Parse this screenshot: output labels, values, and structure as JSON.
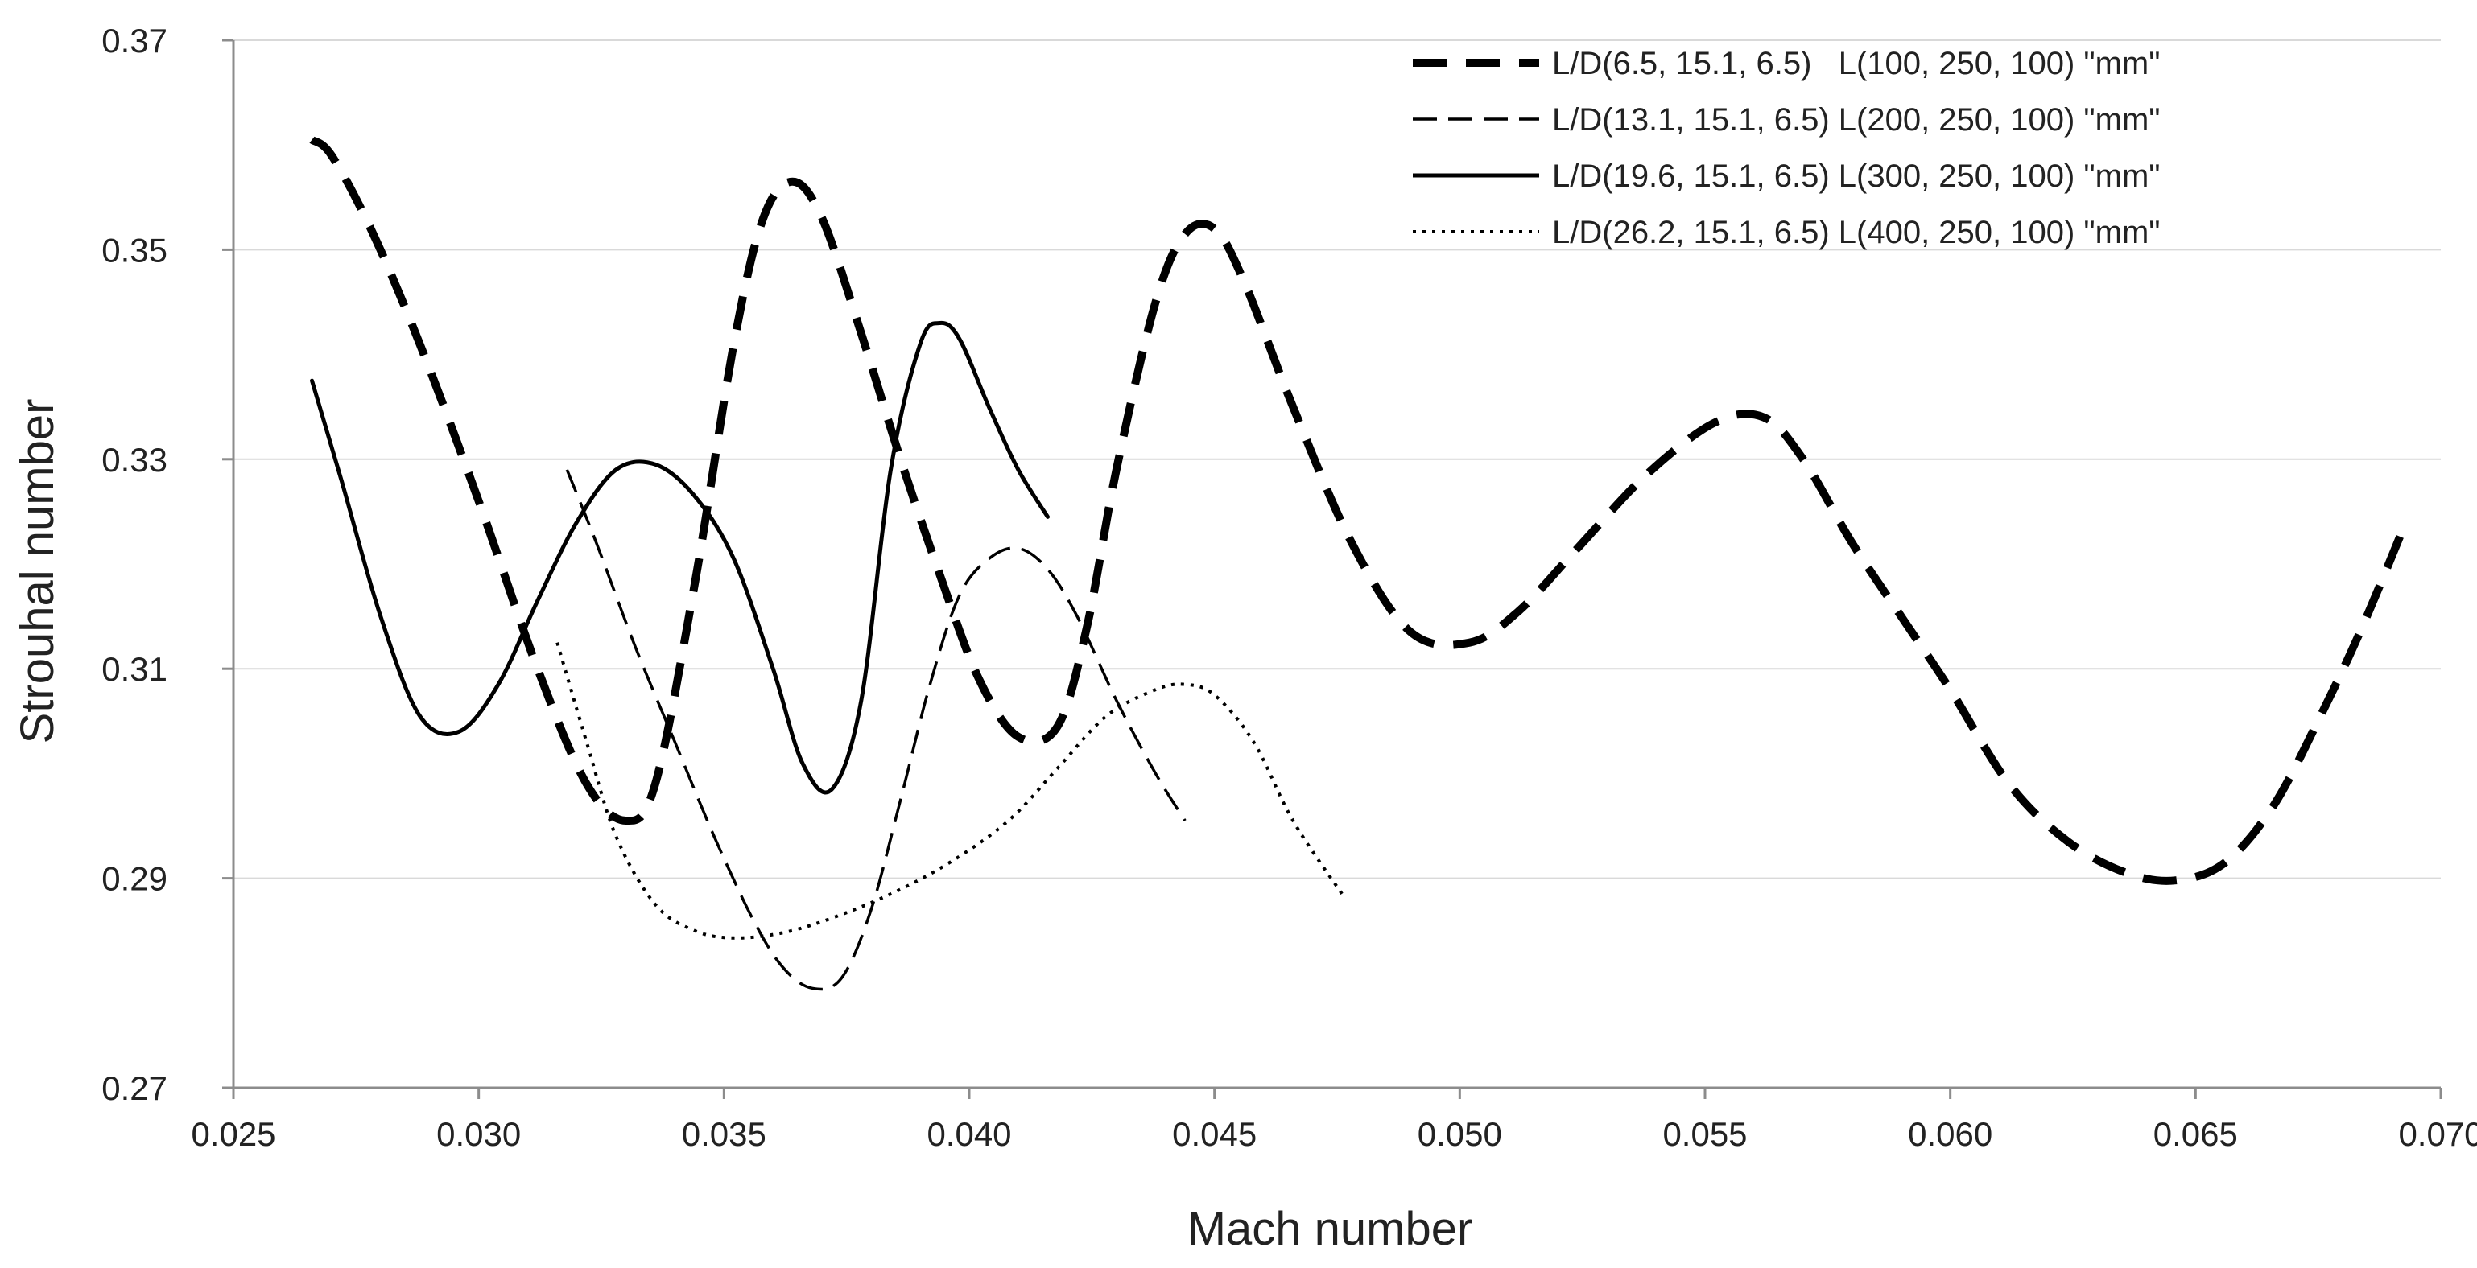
{
  "chart_data": {
    "type": "line",
    "title": "",
    "xlabel": "Mach number",
    "ylabel": "Strouhal number",
    "xlim": [
      0.025,
      0.07
    ],
    "ylim": [
      0.27,
      0.37
    ],
    "xticks": [
      0.025,
      0.03,
      0.035,
      0.04,
      0.045,
      0.05,
      0.055,
      0.06,
      0.065,
      0.07
    ],
    "xtick_labels": [
      "0.025",
      "0.030",
      "0.035",
      "0.040",
      "0.045",
      "0.050",
      "0.055",
      "0.060",
      "0.065",
      "0.070"
    ],
    "yticks": [
      0.27,
      0.29,
      0.31,
      0.33,
      0.35,
      0.37
    ],
    "ytick_labels": [
      "0.27",
      "0.29",
      "0.31",
      "0.33",
      "0.35",
      "0.37"
    ],
    "grid": "horizontal",
    "legend_position": "top-right",
    "series": [
      {
        "name": "L/D(6.5, 15.1, 6.5)   L(100, 250, 100) \"mm\"",
        "style": "dash-heavy",
        "color": "#000000",
        "x": [
          0.0266,
          0.027,
          0.0278,
          0.0288,
          0.03,
          0.0312,
          0.0322,
          0.033,
          0.0336,
          0.0344,
          0.0352,
          0.0358,
          0.0364,
          0.037,
          0.0378,
          0.0386,
          0.0394,
          0.0402,
          0.041,
          0.0418,
          0.0424,
          0.043,
          0.0438,
          0.0444,
          0.045,
          0.0456,
          0.0466,
          0.0478,
          0.049,
          0.0502,
          0.0512,
          0.0524,
          0.0538,
          0.0552,
          0.0562,
          0.057,
          0.058,
          0.059,
          0.06,
          0.0612,
          0.0624,
          0.0636,
          0.0646,
          0.0656,
          0.0666,
          0.0676,
          0.0684,
          0.0692
        ],
        "y": [
          0.3605,
          0.359,
          0.352,
          0.341,
          0.326,
          0.31,
          0.299,
          0.2955,
          0.299,
          0.318,
          0.341,
          0.353,
          0.3565,
          0.353,
          0.342,
          0.33,
          0.319,
          0.309,
          0.3035,
          0.3045,
          0.314,
          0.329,
          0.345,
          0.3515,
          0.352,
          0.347,
          0.335,
          0.322,
          0.3135,
          0.3125,
          0.3155,
          0.3215,
          0.3285,
          0.3335,
          0.334,
          0.33,
          0.322,
          0.315,
          0.308,
          0.299,
          0.2935,
          0.2905,
          0.2898,
          0.2915,
          0.297,
          0.306,
          0.314,
          0.323
        ]
      },
      {
        "name": "L/D(13.1, 15.1, 6.5) L(200, 250, 100) \"mm\"",
        "style": "dash-light",
        "color": "#000000",
        "x": [
          0.0318,
          0.0324,
          0.0332,
          0.034,
          0.0348,
          0.0356,
          0.0362,
          0.0368,
          0.0374,
          0.038,
          0.0386,
          0.0392,
          0.0398,
          0.0404,
          0.041,
          0.0416,
          0.0422,
          0.043,
          0.0438,
          0.0444
        ],
        "y": [
          0.329,
          0.322,
          0.312,
          0.303,
          0.294,
          0.286,
          0.2815,
          0.2795,
          0.2805,
          0.287,
          0.2975,
          0.3085,
          0.317,
          0.3205,
          0.3215,
          0.3195,
          0.315,
          0.307,
          0.3,
          0.2955
        ]
      },
      {
        "name": "L/D(19.6, 15.1, 6.5) L(300, 250, 100) \"mm\"",
        "style": "solid",
        "color": "#000000",
        "x": [
          0.0266,
          0.0272,
          0.028,
          0.0288,
          0.0296,
          0.0304,
          0.0312,
          0.032,
          0.0328,
          0.0336,
          0.0344,
          0.0352,
          0.036,
          0.0366,
          0.0372,
          0.0378,
          0.0384,
          0.039,
          0.0394,
          0.0398,
          0.0404,
          0.041,
          0.0416
        ],
        "y": [
          0.3375,
          0.328,
          0.315,
          0.3055,
          0.304,
          0.3085,
          0.3165,
          0.324,
          0.329,
          0.3295,
          0.3265,
          0.3205,
          0.31,
          0.301,
          0.2985,
          0.307,
          0.329,
          0.341,
          0.343,
          0.3415,
          0.335,
          0.329,
          0.3245
        ]
      },
      {
        "name": "L/D(26.2, 15.1, 6.5) L(400, 250, 100) \"mm\"",
        "style": "dotted",
        "color": "#000000",
        "x": [
          0.0316,
          0.0322,
          0.0328,
          0.0336,
          0.0344,
          0.0352,
          0.0362,
          0.0372,
          0.0384,
          0.0396,
          0.0408,
          0.0418,
          0.0428,
          0.0438,
          0.0444,
          0.045,
          0.0458,
          0.0466,
          0.0476
        ],
        "y": [
          0.3125,
          0.303,
          0.294,
          0.2875,
          0.285,
          0.2843,
          0.2848,
          0.2862,
          0.2885,
          0.2915,
          0.2955,
          0.3005,
          0.3055,
          0.308,
          0.3085,
          0.3075,
          0.303,
          0.2955,
          0.2885
        ]
      }
    ]
  }
}
